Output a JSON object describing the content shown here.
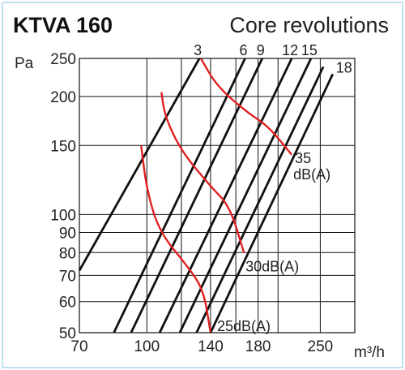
{
  "chart_data": {
    "type": "line",
    "title": "KTVA 160",
    "subtitle": "Core revolutions",
    "ylabel": "Pa",
    "xlabel": "m³/h",
    "x_scale": "log",
    "y_scale": "log",
    "xlim": [
      70,
      300
    ],
    "ylim": [
      50,
      250
    ],
    "x_ticks": [
      {
        "value": 70,
        "label": "70"
      },
      {
        "value": 100,
        "label": "100"
      },
      {
        "value": 140,
        "label": "140"
      },
      {
        "value": 180,
        "label": "180"
      },
      {
        "value": 250,
        "label": "250"
      }
    ],
    "y_ticks": [
      {
        "value": 50,
        "label": "50"
      },
      {
        "value": 60,
        "label": "60"
      },
      {
        "value": 70,
        "label": "70"
      },
      {
        "value": 80,
        "label": "80"
      },
      {
        "value": 90,
        "label": "90"
      },
      {
        "value": 100,
        "label": "100"
      },
      {
        "value": 150,
        "label": "150"
      },
      {
        "value": 200,
        "label": "200"
      },
      {
        "value": 250,
        "label": "250"
      }
    ],
    "extra_x_grid": [
      120,
      160,
      200,
      300
    ],
    "grid": true,
    "revolution_lines": [
      {
        "label": "3",
        "points": [
          [
            70,
            72
          ],
          [
            132,
            250
          ]
        ]
      },
      {
        "label": "6",
        "points": [
          [
            84,
            50
          ],
          [
            168,
            250
          ]
        ]
      },
      {
        "label": "9",
        "points": [
          [
            92,
            50
          ],
          [
            184,
            250
          ]
        ]
      },
      {
        "label": "12",
        "points": [
          [
            107,
            50
          ],
          [
            215,
            250
          ]
        ]
      },
      {
        "label": "15",
        "points": [
          [
            119,
            50
          ],
          [
            238,
            250
          ]
        ]
      },
      {
        "label": "",
        "points": [
          [
            130,
            50
          ],
          [
            254,
            238
          ]
        ]
      },
      {
        "label": "18",
        "points": [
          [
            140,
            50
          ],
          [
            267,
            228
          ]
        ]
      }
    ],
    "db_curves": [
      {
        "label": "25dB(A)",
        "points": [
          [
            97,
            150
          ],
          [
            100,
            115
          ],
          [
            107,
            90
          ],
          [
            125,
            73
          ],
          [
            135,
            64
          ],
          [
            140,
            50
          ]
        ]
      },
      {
        "label": "30dB(A)",
        "points": [
          [
            108,
            205
          ],
          [
            110,
            178
          ],
          [
            120,
            145
          ],
          [
            140,
            118
          ],
          [
            155,
            105
          ],
          [
            167,
            80
          ]
        ]
      },
      {
        "label": "35",
        "label2": "dB(A)",
        "points": [
          [
            133,
            250
          ],
          [
            145,
            212
          ],
          [
            170,
            182
          ],
          [
            190,
            168
          ],
          [
            215,
            142
          ]
        ]
      }
    ],
    "colors": {
      "revolution_lines": "#111111",
      "db_curves": "#e02020",
      "frame": "#bfe0f0"
    }
  }
}
